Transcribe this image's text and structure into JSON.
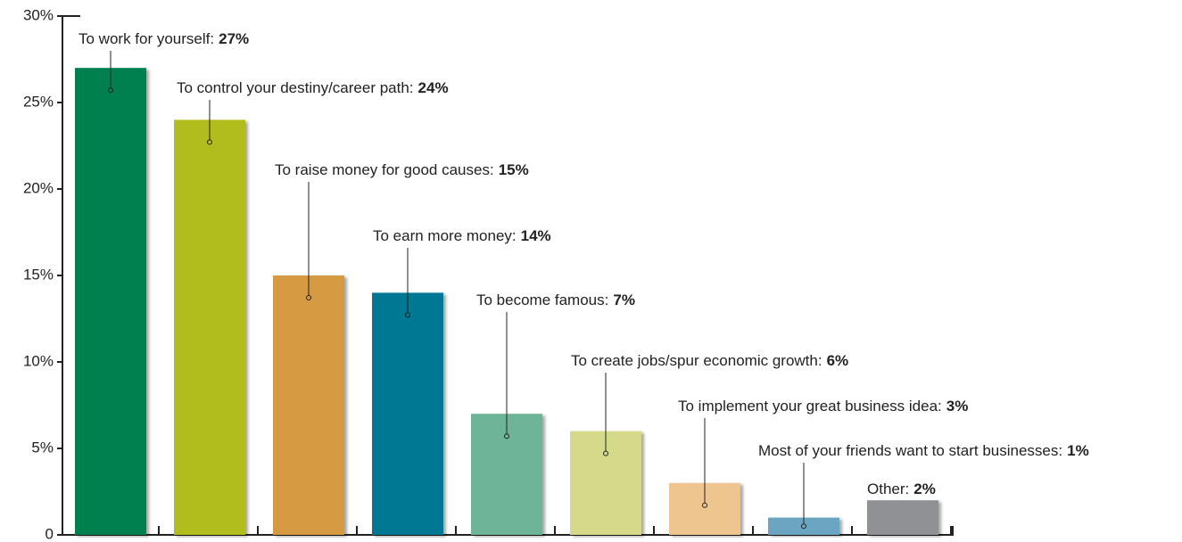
{
  "chart_data": {
    "type": "bar",
    "categories": [
      "To work for yourself:",
      "To control your destiny/career path:",
      "To raise money for good causes:",
      "To earn more money:",
      "To become famous:",
      "To create jobs/spur economic growth:",
      "To implement your great business idea:",
      "Most of your friends want to start businesses:",
      "Other:"
    ],
    "values": [
      27,
      24,
      15,
      14,
      7,
      6,
      3,
      1,
      2
    ],
    "value_labels": [
      "27%",
      "24%",
      "15%",
      "14%",
      "7%",
      "6%",
      "3%",
      "1%",
      "2%"
    ],
    "colors": [
      "#00804f",
      "#b1bd1f",
      "#d59a43",
      "#007893",
      "#6db498",
      "#d5d98a",
      "#eec48f",
      "#6aa6c1",
      "#8f9194"
    ],
    "ylim": [
      0,
      30
    ],
    "yticks": [
      0,
      {
        "value": 5,
        "label": "5%"
      },
      {
        "value": 10,
        "label": "10%"
      },
      {
        "value": 15,
        "label": "15%"
      },
      {
        "value": 20,
        "label": "20%"
      },
      {
        "value": 25,
        "label": "25%"
      },
      {
        "value": 30,
        "label": "30%"
      }
    ]
  }
}
